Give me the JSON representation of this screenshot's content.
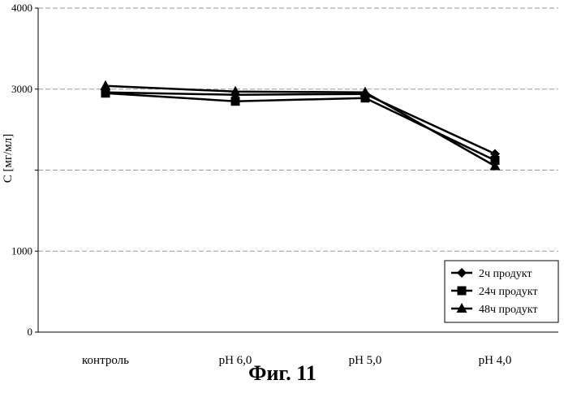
{
  "chart_data": {
    "type": "line",
    "categories": [
      "контроль",
      "pH 6,0",
      "pH 5,0",
      "pH 4,0"
    ],
    "series": [
      {
        "name": "2ч продукт",
        "marker": "diamond",
        "values": [
          2960,
          2930,
          2940,
          2200
        ]
      },
      {
        "name": "24ч продукт",
        "marker": "square",
        "values": [
          2950,
          2850,
          2890,
          2120
        ]
      },
      {
        "name": "48ч продукт",
        "marker": "triangle",
        "values": [
          3040,
          2970,
          2960,
          2050
        ]
      }
    ],
    "ylabel": "С [мг/мл]",
    "ylim": [
      0,
      4000
    ],
    "yticks": [
      {
        "value": 0,
        "label": "0"
      },
      {
        "value": 1000,
        "label": "1000"
      },
      {
        "value": 2000,
        "label": ""
      },
      {
        "value": 3000,
        "label": "3000"
      },
      {
        "value": 4000,
        "label": "4000"
      }
    ],
    "grid": true,
    "legend_position": "bottom-right",
    "line_color": "#000000",
    "caption": "Фиг. 11"
  }
}
